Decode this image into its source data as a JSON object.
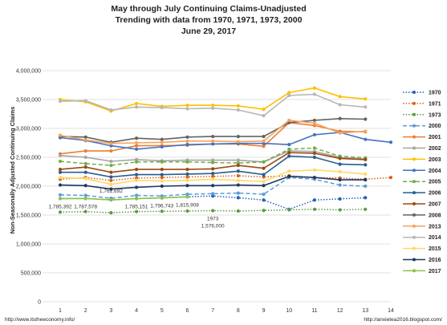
{
  "chart_data": {
    "type": "line",
    "title": [
      "May through July Continuing Claims-Unadjusted",
      "Trending with data from 1970, 1971, 1973, 2000",
      "June 29, 2017"
    ],
    "ylabel": "Non-Seasonally Adjusted Continuing Claims",
    "xlabel": "",
    "x": [
      1,
      2,
      3,
      4,
      5,
      6,
      7,
      8,
      9,
      10,
      11,
      12,
      13,
      14
    ],
    "ylim": [
      0,
      4000000
    ],
    "yticks": [
      "0",
      "500,000",
      "1,000,000",
      "1,500,000",
      "2,000,000",
      "2,500,000",
      "3,000,000",
      "3,500,000",
      "4,000,000"
    ],
    "xticks": [
      "1",
      "2",
      "3",
      "4",
      "5",
      "6",
      "7",
      "8",
      "9",
      "10",
      "11",
      "12",
      "13",
      "14"
    ],
    "grid": true,
    "legend": "right",
    "series": [
      {
        "name": "1970",
        "color": "#1f5fbf",
        "dash": "dot",
        "values": [
          1785392,
          1787578,
          1762692,
          1785151,
          1796743,
          1815908,
          1830000,
          1800000,
          1760000,
          1600000,
          1760000,
          1780000,
          1800000,
          null
        ]
      },
      {
        "name": "1971",
        "color": "#d9601a",
        "dash": "dot",
        "values": [
          2120000,
          2150000,
          2100000,
          2140000,
          2150000,
          2160000,
          2170000,
          2180000,
          2160000,
          2180000,
          2150000,
          2140000,
          2120000,
          2150000
        ]
      },
      {
        "name": "1973",
        "color": "#5b9a45",
        "dash": "dot",
        "values": [
          1550000,
          1560000,
          1540000,
          1560000,
          1565000,
          1570000,
          1576000,
          1570000,
          1580000,
          1590000,
          1600000,
          1590000,
          1600000,
          null
        ]
      },
      {
        "name": "2000",
        "color": "#5b9bd5",
        "dash": "dash",
        "values": [
          1850000,
          1840000,
          1790000,
          1840000,
          1830000,
          1860000,
          1870000,
          1880000,
          1860000,
          2150000,
          2120000,
          2020000,
          2000000,
          null
        ]
      },
      {
        "name": "2001",
        "color": "#ed7d31",
        "dash": "solid",
        "values": [
          2560000,
          2610000,
          2610000,
          2700000,
          2700000,
          2710000,
          2730000,
          2730000,
          2690000,
          3100000,
          3050000,
          2950000,
          2940000,
          null
        ]
      },
      {
        "name": "2002",
        "color": "#a5a5a5",
        "dash": "solid",
        "values": [
          2530000,
          2500000,
          2430000,
          2460000,
          2440000,
          2450000,
          2450000,
          2450000,
          2420000,
          2610000,
          2600000,
          2500000,
          2470000,
          null
        ]
      },
      {
        "name": "2003",
        "color": "#ffc000",
        "dash": "solid",
        "values": [
          3500000,
          3460000,
          3300000,
          3430000,
          3380000,
          3400000,
          3400000,
          3390000,
          3330000,
          3620000,
          3700000,
          3550000,
          3510000,
          null
        ]
      },
      {
        "name": "2004",
        "color": "#4472c4",
        "dash": "solid",
        "values": [
          2840000,
          2790000,
          2700000,
          2640000,
          2680000,
          2720000,
          2730000,
          2740000,
          2740000,
          2720000,
          2890000,
          2930000,
          2810000,
          2760000
        ]
      },
      {
        "name": "2005",
        "color": "#70ad47",
        "dash": "dash",
        "values": [
          2430000,
          2390000,
          2360000,
          2420000,
          2420000,
          2420000,
          2410000,
          2400000,
          2420000,
          2640000,
          2660000,
          2520000,
          2490000,
          null
        ]
      },
      {
        "name": "2006",
        "color": "#255e91",
        "dash": "solid",
        "values": [
          2240000,
          2240000,
          2160000,
          2200000,
          2200000,
          2210000,
          2220000,
          2260000,
          2200000,
          2520000,
          2500000,
          2380000,
          2370000,
          null
        ]
      },
      {
        "name": "2007",
        "color": "#9e480e",
        "dash": "solid",
        "values": [
          2290000,
          2330000,
          2240000,
          2290000,
          2290000,
          2290000,
          2300000,
          2360000,
          2310000,
          2580000,
          2570000,
          2480000,
          2460000,
          null
        ]
      },
      {
        "name": "2008",
        "color": "#636363",
        "dash": "solid",
        "values": [
          2860000,
          2850000,
          2760000,
          2830000,
          2810000,
          2850000,
          2860000,
          2860000,
          2860000,
          3100000,
          3140000,
          3170000,
          3160000,
          null
        ]
      },
      {
        "name": "2013",
        "color": "#f4a460",
        "dash": "solid",
        "values": [
          2880000,
          2800000,
          2740000,
          2750000,
          2760000,
          2780000,
          2780000,
          2770000,
          2780000,
          3140000,
          3090000,
          2920000,
          2950000,
          null
        ]
      },
      {
        "name": "2014",
        "color": "#b7b7b7",
        "dash": "solid",
        "values": [
          3470000,
          3480000,
          3320000,
          3370000,
          3360000,
          3340000,
          3350000,
          3320000,
          3220000,
          3570000,
          3590000,
          3410000,
          3370000,
          null
        ]
      },
      {
        "name": "2015",
        "color": "#ffd966",
        "dash": "solid",
        "values": [
          2150000,
          2130000,
          2030000,
          2100000,
          2090000,
          2100000,
          2120000,
          2100000,
          2080000,
          2260000,
          2280000,
          2250000,
          2210000,
          null
        ]
      },
      {
        "name": "2016",
        "color": "#1f3864",
        "dash": "solid",
        "values": [
          2020000,
          2010000,
          1950000,
          1980000,
          2000000,
          2010000,
          2010000,
          2020000,
          2010000,
          2170000,
          2150000,
          2110000,
          2110000,
          null
        ]
      },
      {
        "name": "2017",
        "color": "#8bc34a",
        "dash": "solid",
        "values": [
          1785392,
          1787578,
          1762692,
          1785151,
          1796743,
          1815908,
          null,
          null,
          null,
          null,
          null,
          null,
          null,
          null
        ]
      }
    ],
    "annotations": [
      {
        "text": "1,785,392",
        "x": 1,
        "y": 1785392
      },
      {
        "text": "1,787,578",
        "x": 2,
        "y": 1787578
      },
      {
        "text": "1,762,692",
        "x": 3,
        "y": 1762692
      },
      {
        "text": "1,785,151",
        "x": 4,
        "y": 1785151
      },
      {
        "text": "1,796,743",
        "x": 5,
        "y": 1796743
      },
      {
        "text": "1,815,908",
        "x": 6,
        "y": 1815908
      },
      {
        "text": "1973",
        "x": 7,
        "y": 1576000
      },
      {
        "text": "1,576,000",
        "x": 7,
        "y": 1576000
      }
    ]
  },
  "sources": {
    "left": "http://www.itstheeconomy.info/",
    "right": "http://anxietea2016.blogspot.com/"
  }
}
